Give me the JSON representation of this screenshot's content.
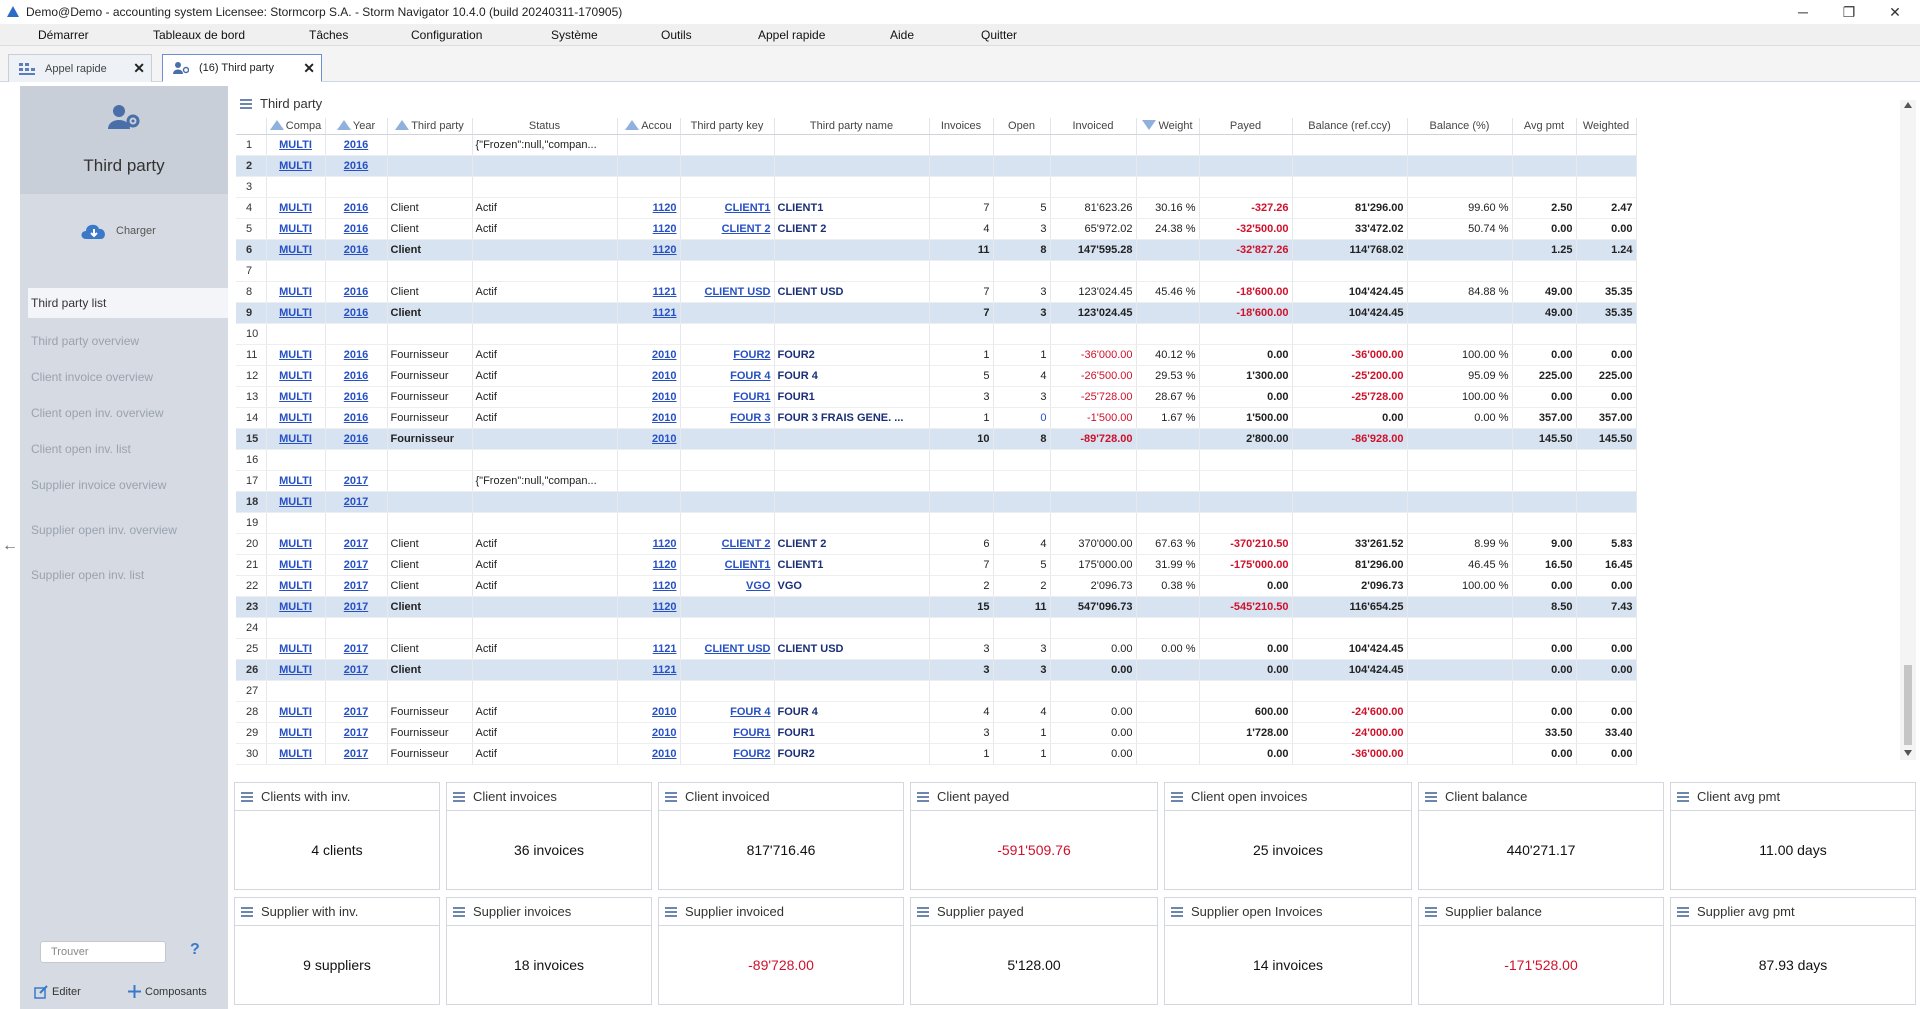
{
  "window": {
    "title": "Demo@Demo - accounting system    Licensee: Stormcorp S.A. - Storm Navigator 10.4.0 (build 20240311-170905)",
    "minimize": "─",
    "restore": "❐",
    "close": "✕"
  },
  "menu": [
    "Démarrer",
    "Tableaux de bord",
    "Tâches",
    "Configuration",
    "Système",
    "Outils",
    "Appel rapide",
    "Aide",
    "Quitter"
  ],
  "tabs": [
    {
      "label": "Appel rapide",
      "close": "✕"
    },
    {
      "label": "(16) Third party",
      "close": "✕"
    }
  ],
  "sidebar": {
    "title": "Third party",
    "load_label": "Charger",
    "items": [
      "Third party list",
      "Third party overview",
      "Client invoice overview",
      "Client open inv. overview",
      "Client open inv. list",
      "Supplier invoice overview",
      "Supplier open inv. overview",
      "Supplier open inv. list"
    ],
    "find_placeholder": "Trouver",
    "help": "?",
    "edit_label": "Editer",
    "components_label": "Composants"
  },
  "grid": {
    "title": "Third party",
    "columns": [
      "Compa",
      "Year",
      "Third party",
      "Status",
      "Accou",
      "Third party key",
      "Third party name",
      "Invoices",
      "Open",
      "Invoiced",
      "Weight",
      "Payed",
      "Balance (ref.ccy)",
      "Balance (%)",
      "Avg pmt",
      "Weighted"
    ],
    "rows": [
      {
        "n": "1",
        "co": "MULTI",
        "yr": "2016",
        "tp": "",
        "st": "{\"Frozen\":null,\"compan...",
        "ac": "",
        "key": "",
        "name": "",
        "inv": "",
        "open": "",
        "invd": "",
        "w": "",
        "pay": "",
        "bal": "",
        "balp": "",
        "avg": "",
        "wt": "",
        "t": false
      },
      {
        "n": "2",
        "co": "MULTI",
        "yr": "2016",
        "tp": "",
        "st": "",
        "ac": "",
        "key": "",
        "name": "",
        "inv": "",
        "open": "",
        "invd": "",
        "w": "",
        "pay": "",
        "bal": "",
        "balp": "",
        "avg": "",
        "wt": "",
        "t": true
      },
      {
        "n": "3",
        "co": "",
        "yr": "",
        "tp": "",
        "st": "",
        "ac": "",
        "key": "",
        "name": "",
        "inv": "",
        "open": "",
        "invd": "",
        "w": "",
        "pay": "",
        "bal": "",
        "balp": "",
        "avg": "",
        "wt": "",
        "t": false
      },
      {
        "n": "4",
        "co": "MULTI",
        "yr": "2016",
        "tp": "Client",
        "st": "Actif",
        "ac": "1120",
        "key": "CLIENT1",
        "name": "CLIENT1",
        "inv": "7",
        "open": "5",
        "invd": "81'623.26",
        "w": "30.16 %",
        "pay": "-327.26",
        "bal": "81'296.00",
        "balp": "99.60 %",
        "avg": "2.50",
        "wt": "2.47",
        "t": false
      },
      {
        "n": "5",
        "co": "MULTI",
        "yr": "2016",
        "tp": "Client",
        "st": "Actif",
        "ac": "1120",
        "key": "CLIENT 2",
        "name": "CLIENT 2",
        "inv": "4",
        "open": "3",
        "invd": "65'972.02",
        "w": "24.38 %",
        "pay": "-32'500.00",
        "bal": "33'472.02",
        "balp": "50.74 %",
        "avg": "0.00",
        "wt": "0.00",
        "t": false
      },
      {
        "n": "6",
        "co": "MULTI",
        "yr": "2016",
        "tp": "Client",
        "st": "",
        "ac": "1120",
        "key": "",
        "name": "",
        "inv": "11",
        "open": "8",
        "invd": "147'595.28",
        "w": "",
        "pay": "-32'827.26",
        "bal": "114'768.02",
        "balp": "",
        "avg": "1.25",
        "wt": "1.24",
        "t": true
      },
      {
        "n": "7",
        "co": "",
        "yr": "",
        "tp": "",
        "st": "",
        "ac": "",
        "key": "",
        "name": "",
        "inv": "",
        "open": "",
        "invd": "",
        "w": "",
        "pay": "",
        "bal": "",
        "balp": "",
        "avg": "",
        "wt": "",
        "t": false
      },
      {
        "n": "8",
        "co": "MULTI",
        "yr": "2016",
        "tp": "Client",
        "st": "Actif",
        "ac": "1121",
        "key": "CLIENT USD",
        "name": "CLIENT USD",
        "inv": "7",
        "open": "3",
        "invd": "123'024.45",
        "w": "45.46 %",
        "pay": "-18'600.00",
        "bal": "104'424.45",
        "balp": "84.88 %",
        "avg": "49.00",
        "wt": "35.35",
        "t": false
      },
      {
        "n": "9",
        "co": "MULTI",
        "yr": "2016",
        "tp": "Client",
        "st": "",
        "ac": "1121",
        "key": "",
        "name": "",
        "inv": "7",
        "open": "3",
        "invd": "123'024.45",
        "w": "",
        "pay": "-18'600.00",
        "bal": "104'424.45",
        "balp": "",
        "avg": "49.00",
        "wt": "35.35",
        "t": true
      },
      {
        "n": "10",
        "co": "",
        "yr": "",
        "tp": "",
        "st": "",
        "ac": "",
        "key": "",
        "name": "",
        "inv": "",
        "open": "",
        "invd": "",
        "w": "",
        "pay": "",
        "bal": "",
        "balp": "",
        "avg": "",
        "wt": "",
        "t": false
      },
      {
        "n": "11",
        "co": "MULTI",
        "yr": "2016",
        "tp": "Fournisseur",
        "st": "Actif",
        "ac": "2010",
        "key": "FOUR2",
        "name": "FOUR2",
        "inv": "1",
        "open": "1",
        "invd": "-36'000.00",
        "w": "40.12 %",
        "pay": "0.00",
        "bal": "-36'000.00",
        "balp": "100.00 %",
        "avg": "0.00",
        "wt": "0.00",
        "t": false
      },
      {
        "n": "12",
        "co": "MULTI",
        "yr": "2016",
        "tp": "Fournisseur",
        "st": "Actif",
        "ac": "2010",
        "key": "FOUR 4",
        "name": "FOUR 4",
        "inv": "5",
        "open": "4",
        "invd": "-26'500.00",
        "w": "29.53 %",
        "pay": "1'300.00",
        "bal": "-25'200.00",
        "balp": "95.09 %",
        "avg": "225.00",
        "wt": "225.00",
        "t": false
      },
      {
        "n": "13",
        "co": "MULTI",
        "yr": "2016",
        "tp": "Fournisseur",
        "st": "Actif",
        "ac": "2010",
        "key": "FOUR1",
        "name": "FOUR1",
        "inv": "3",
        "open": "3",
        "invd": "-25'728.00",
        "w": "28.67 %",
        "pay": "0.00",
        "bal": "-25'728.00",
        "balp": "100.00 %",
        "avg": "0.00",
        "wt": "0.00",
        "t": false
      },
      {
        "n": "14",
        "co": "MULTI",
        "yr": "2016",
        "tp": "Fournisseur",
        "st": "Actif",
        "ac": "2010",
        "key": "FOUR 3",
        "name": "FOUR 3 FRAIS GENE. ...",
        "inv": "1",
        "open": "0",
        "invd": "-1'500.00",
        "w": "1.67 %",
        "pay": "1'500.00",
        "bal": "0.00",
        "balp": "0.00 %",
        "avg": "357.00",
        "wt": "357.00",
        "t": false
      },
      {
        "n": "15",
        "co": "MULTI",
        "yr": "2016",
        "tp": "Fournisseur",
        "st": "",
        "ac": "2010",
        "key": "",
        "name": "",
        "inv": "10",
        "open": "8",
        "invd": "-89'728.00",
        "w": "",
        "pay": "2'800.00",
        "bal": "-86'928.00",
        "balp": "",
        "avg": "145.50",
        "wt": "145.50",
        "t": true
      },
      {
        "n": "16",
        "co": "",
        "yr": "",
        "tp": "",
        "st": "",
        "ac": "",
        "key": "",
        "name": "",
        "inv": "",
        "open": "",
        "invd": "",
        "w": "",
        "pay": "",
        "bal": "",
        "balp": "",
        "avg": "",
        "wt": "",
        "t": false
      },
      {
        "n": "17",
        "co": "MULTI",
        "yr": "2017",
        "tp": "",
        "st": "{\"Frozen\":null,\"compan...",
        "ac": "",
        "key": "",
        "name": "",
        "inv": "",
        "open": "",
        "invd": "",
        "w": "",
        "pay": "",
        "bal": "",
        "balp": "",
        "avg": "",
        "wt": "",
        "t": false
      },
      {
        "n": "18",
        "co": "MULTI",
        "yr": "2017",
        "tp": "",
        "st": "",
        "ac": "",
        "key": "",
        "name": "",
        "inv": "",
        "open": "",
        "invd": "",
        "w": "",
        "pay": "",
        "bal": "",
        "balp": "",
        "avg": "",
        "wt": "",
        "t": true
      },
      {
        "n": "19",
        "co": "",
        "yr": "",
        "tp": "",
        "st": "",
        "ac": "",
        "key": "",
        "name": "",
        "inv": "",
        "open": "",
        "invd": "",
        "w": "",
        "pay": "",
        "bal": "",
        "balp": "",
        "avg": "",
        "wt": "",
        "t": false
      },
      {
        "n": "20",
        "co": "MULTI",
        "yr": "2017",
        "tp": "Client",
        "st": "Actif",
        "ac": "1120",
        "key": "CLIENT 2",
        "name": "CLIENT 2",
        "inv": "6",
        "open": "4",
        "invd": "370'000.00",
        "w": "67.63 %",
        "pay": "-370'210.50",
        "bal": "33'261.52",
        "balp": "8.99 %",
        "avg": "9.00",
        "wt": "5.83",
        "t": false
      },
      {
        "n": "21",
        "co": "MULTI",
        "yr": "2017",
        "tp": "Client",
        "st": "Actif",
        "ac": "1120",
        "key": "CLIENT1",
        "name": "CLIENT1",
        "inv": "7",
        "open": "5",
        "invd": "175'000.00",
        "w": "31.99 %",
        "pay": "-175'000.00",
        "bal": "81'296.00",
        "balp": "46.45 %",
        "avg": "16.50",
        "wt": "16.45",
        "t": false
      },
      {
        "n": "22",
        "co": "MULTI",
        "yr": "2017",
        "tp": "Client",
        "st": "Actif",
        "ac": "1120",
        "key": "VGO",
        "name": "VGO",
        "inv": "2",
        "open": "2",
        "invd": "2'096.73",
        "w": "0.38 %",
        "pay": "0.00",
        "bal": "2'096.73",
        "balp": "100.00 %",
        "avg": "0.00",
        "wt": "0.00",
        "t": false
      },
      {
        "n": "23",
        "co": "MULTI",
        "yr": "2017",
        "tp": "Client",
        "st": "",
        "ac": "1120",
        "key": "",
        "name": "",
        "inv": "15",
        "open": "11",
        "invd": "547'096.73",
        "w": "",
        "pay": "-545'210.50",
        "bal": "116'654.25",
        "balp": "",
        "avg": "8.50",
        "wt": "7.43",
        "t": true
      },
      {
        "n": "24",
        "co": "",
        "yr": "",
        "tp": "",
        "st": "",
        "ac": "",
        "key": "",
        "name": "",
        "inv": "",
        "open": "",
        "invd": "",
        "w": "",
        "pay": "",
        "bal": "",
        "balp": "",
        "avg": "",
        "wt": "",
        "t": false
      },
      {
        "n": "25",
        "co": "MULTI",
        "yr": "2017",
        "tp": "Client",
        "st": "Actif",
        "ac": "1121",
        "key": "CLIENT USD",
        "name": "CLIENT USD",
        "inv": "3",
        "open": "3",
        "invd": "0.00",
        "w": "0.00 %",
        "pay": "0.00",
        "bal": "104'424.45",
        "balp": "",
        "avg": "0.00",
        "wt": "0.00",
        "t": false
      },
      {
        "n": "26",
        "co": "MULTI",
        "yr": "2017",
        "tp": "Client",
        "st": "",
        "ac": "1121",
        "key": "",
        "name": "",
        "inv": "3",
        "open": "3",
        "invd": "0.00",
        "w": "",
        "pay": "0.00",
        "bal": "104'424.45",
        "balp": "",
        "avg": "0.00",
        "wt": "0.00",
        "t": true
      },
      {
        "n": "27",
        "co": "",
        "yr": "",
        "tp": "",
        "st": "",
        "ac": "",
        "key": "",
        "name": "",
        "inv": "",
        "open": "",
        "invd": "",
        "w": "",
        "pay": "",
        "bal": "",
        "balp": "",
        "avg": "",
        "wt": "",
        "t": false
      },
      {
        "n": "28",
        "co": "MULTI",
        "yr": "2017",
        "tp": "Fournisseur",
        "st": "Actif",
        "ac": "2010",
        "key": "FOUR 4",
        "name": "FOUR 4",
        "inv": "4",
        "open": "4",
        "invd": "0.00",
        "w": "",
        "pay": "600.00",
        "bal": "-24'600.00",
        "balp": "",
        "avg": "0.00",
        "wt": "0.00",
        "t": false
      },
      {
        "n": "29",
        "co": "MULTI",
        "yr": "2017",
        "tp": "Fournisseur",
        "st": "Actif",
        "ac": "2010",
        "key": "FOUR1",
        "name": "FOUR1",
        "inv": "3",
        "open": "1",
        "invd": "0.00",
        "w": "",
        "pay": "1'728.00",
        "bal": "-24'000.00",
        "balp": "",
        "avg": "33.50",
        "wt": "33.40",
        "t": false
      },
      {
        "n": "30",
        "co": "MULTI",
        "yr": "2017",
        "tp": "Fournisseur",
        "st": "Actif",
        "ac": "2010",
        "key": "FOUR2",
        "name": "FOUR2",
        "inv": "1",
        "open": "1",
        "invd": "0.00",
        "w": "",
        "pay": "0.00",
        "bal": "-36'000.00",
        "balp": "",
        "avg": "0.00",
        "wt": "0.00",
        "t": false
      }
    ]
  },
  "tiles": [
    {
      "title": "Clients with inv.",
      "value": "4 clients",
      "neg": false
    },
    {
      "title": "Client invoices",
      "value": "36 invoices",
      "neg": false
    },
    {
      "title": "Client invoiced",
      "value": "817'716.46",
      "neg": false
    },
    {
      "title": "Client payed",
      "value": "-591'509.76",
      "neg": true
    },
    {
      "title": "Client open invoices",
      "value": "25 invoices",
      "neg": false
    },
    {
      "title": "Client balance",
      "value": "440'271.17",
      "neg": false
    },
    {
      "title": "Client avg pmt",
      "value": "11.00 days",
      "neg": false
    },
    {
      "title": "Supplier with inv.",
      "value": "9 suppliers",
      "neg": false
    },
    {
      "title": "Supplier invoices",
      "value": "18 invoices",
      "neg": false
    },
    {
      "title": "Supplier invoiced",
      "value": "-89'728.00",
      "neg": true
    },
    {
      "title": "Supplier payed",
      "value": "5'128.00",
      "neg": false
    },
    {
      "title": "Supplier open Invoices",
      "value": "14 invoices",
      "neg": false
    },
    {
      "title": "Supplier balance",
      "value": "-171'528.00",
      "neg": true
    },
    {
      "title": "Supplier avg pmt",
      "value": "87.93 days",
      "neg": false
    }
  ],
  "colors": {
    "accent": "#2650c4",
    "negative": "#d0112b",
    "total_row": "#d7e3f1",
    "sidebar": "#d6dbe3"
  }
}
